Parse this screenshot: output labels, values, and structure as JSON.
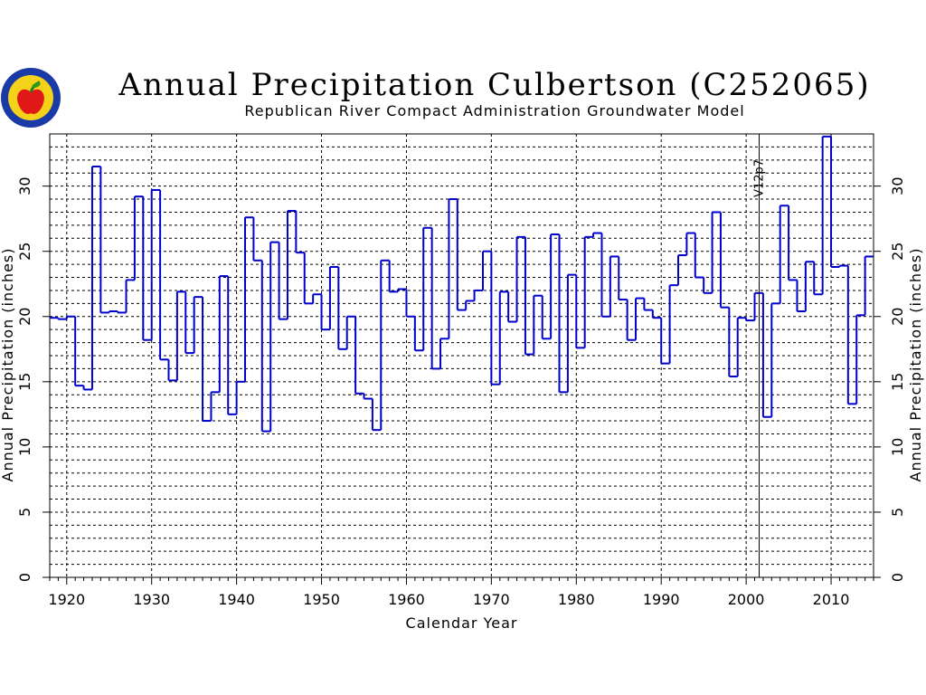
{
  "chart_data": {
    "type": "line",
    "step": true,
    "title": "Annual Precipitation Culbertson (C252065)",
    "subtitle": "Republican River Compact Administration Groundwater Model",
    "xlabel": "Calendar Year",
    "ylabel": "Annual Precipitation (inches)",
    "xlim": [
      1918,
      2015
    ],
    "ylim": [
      0,
      34
    ],
    "x_ticks": [
      1920,
      1930,
      1940,
      1950,
      1960,
      1970,
      1980,
      1990,
      2000,
      2010
    ],
    "y_ticks": [
      0,
      5,
      10,
      15,
      20,
      25,
      30
    ],
    "grid": true,
    "annotation": {
      "text": "V12p7",
      "x": 2001
    },
    "series_color": "#0000cc",
    "x": [
      1918,
      1919,
      1920,
      1921,
      1922,
      1923,
      1924,
      1925,
      1926,
      1927,
      1928,
      1929,
      1930,
      1931,
      1932,
      1933,
      1934,
      1935,
      1936,
      1937,
      1938,
      1939,
      1940,
      1941,
      1942,
      1943,
      1944,
      1945,
      1946,
      1947,
      1948,
      1949,
      1950,
      1951,
      1952,
      1953,
      1954,
      1955,
      1956,
      1957,
      1958,
      1959,
      1960,
      1961,
      1962,
      1963,
      1964,
      1965,
      1966,
      1967,
      1968,
      1969,
      1970,
      1971,
      1972,
      1973,
      1974,
      1975,
      1976,
      1977,
      1978,
      1979,
      1980,
      1981,
      1982,
      1983,
      1984,
      1985,
      1986,
      1987,
      1988,
      1989,
      1990,
      1991,
      1992,
      1993,
      1994,
      1995,
      1996,
      1997,
      1998,
      1999,
      2000,
      2001,
      2002,
      2003,
      2004,
      2005,
      2006,
      2007,
      2008,
      2009,
      2010,
      2011,
      2012,
      2013,
      2014
    ],
    "values": [
      19.9,
      19.8,
      20.0,
      14.7,
      14.4,
      31.5,
      20.3,
      20.4,
      20.3,
      22.8,
      29.2,
      18.2,
      29.7,
      16.7,
      15.1,
      21.9,
      17.2,
      21.5,
      12.0,
      14.2,
      23.1,
      12.5,
      15.0,
      27.6,
      24.3,
      11.2,
      25.7,
      19.8,
      28.1,
      24.9,
      21.0,
      21.7,
      19.0,
      23.8,
      17.5,
      20.0,
      14.1,
      13.7,
      11.3,
      24.3,
      21.9,
      22.1,
      20.0,
      17.4,
      26.8,
      16.0,
      18.3,
      29.0,
      20.5,
      21.2,
      22.0,
      25.0,
      14.8,
      21.9,
      19.6,
      26.1,
      17.1,
      21.6,
      18.3,
      26.3,
      14.2,
      23.2,
      17.6,
      26.1,
      26.4,
      20.0,
      24.6,
      21.3,
      18.2,
      21.4,
      20.5,
      19.9,
      16.4,
      22.4,
      24.7,
      26.4,
      23.0,
      21.8,
      28.0,
      20.7,
      15.4,
      19.9,
      19.7,
      21.8,
      12.3,
      21.0,
      28.5,
      22.8,
      20.4,
      24.2,
      21.7,
      33.8,
      23.8,
      23.9,
      13.3,
      20.1,
      24.6
    ]
  }
}
